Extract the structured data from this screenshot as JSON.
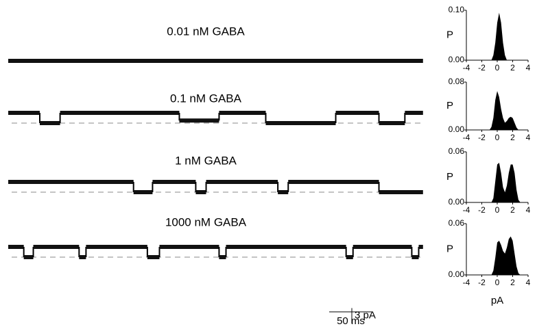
{
  "chart_data": [
    {
      "type": "trace",
      "title": "0.01 nM GABA",
      "xlim": [
        0,
        480
      ],
      "x": [
        0
      ],
      "values": [
        0
      ],
      "baseline_dashed": false
    },
    {
      "type": "trace",
      "title": "0.1 nM GABA",
      "xlim": [
        0,
        480
      ],
      "x": [
        0,
        36.5,
        60,
        198,
        244,
        298,
        379,
        429,
        459
      ],
      "values": [
        2,
        0,
        2,
        0.5,
        2,
        0,
        2,
        0,
        2
      ],
      "baseline_dashed": true
    },
    {
      "type": "trace",
      "title": "1 nM GABA",
      "xlim": [
        0,
        480
      ],
      "x": [
        0,
        145,
        167,
        217,
        229,
        312,
        324,
        429
      ],
      "values": [
        2,
        0,
        2,
        0,
        2,
        0,
        2,
        0
      ],
      "baseline_dashed": true
    },
    {
      "type": "trace",
      "title": "1000 nM GABA",
      "xlim": [
        0,
        480
      ],
      "x": [
        0,
        18,
        29,
        82,
        90,
        161,
        175,
        244,
        252,
        391,
        399,
        467,
        475
      ],
      "values": [
        2,
        0,
        2,
        0,
        2,
        0,
        2,
        0,
        2,
        0,
        2,
        0,
        2
      ],
      "baseline_dashed": true
    },
    {
      "type": "area",
      "ylabel": "P",
      "color": "#000000",
      "xlim": [
        -4,
        4
      ],
      "xticks": [
        -4,
        -2,
        0,
        2,
        4
      ],
      "ylim": [
        0,
        0.1
      ],
      "yticks": [
        {
          "value": 0,
          "label": "0.00"
        },
        {
          "value": 0.1,
          "label": "0.10"
        }
      ],
      "x": [
        -1,
        -0.75,
        -0.5,
        -0.25,
        0,
        0.25,
        0.5,
        0.75,
        1,
        1.25,
        1.5,
        1.75,
        2,
        2.25,
        2.5,
        2.75,
        3
      ],
      "values": [
        0,
        0,
        0.01,
        0.035,
        0.075,
        0.095,
        0.075,
        0.035,
        0.01,
        0,
        0,
        0,
        0,
        0,
        0,
        0,
        0
      ]
    },
    {
      "type": "area",
      "ylabel": "P",
      "color": "#000000",
      "xlim": [
        -4,
        4
      ],
      "xticks": [
        -4,
        -2,
        0,
        2,
        4
      ],
      "ylim": [
        0,
        0.08
      ],
      "yticks": [
        {
          "value": 0,
          "label": "0.00"
        },
        {
          "value": 0.08,
          "label": "0.08"
        }
      ],
      "x": [
        -1,
        -0.75,
        -0.5,
        -0.25,
        0,
        0.25,
        0.5,
        0.75,
        1,
        1.25,
        1.5,
        1.75,
        2,
        2.25,
        2.5,
        2.75,
        3
      ],
      "values": [
        0,
        0.005,
        0.02,
        0.05,
        0.065,
        0.055,
        0.035,
        0.02,
        0.012,
        0.015,
        0.02,
        0.022,
        0.02,
        0.012,
        0.004,
        0,
        0
      ]
    },
    {
      "type": "area",
      "ylabel": "P",
      "color": "#000000",
      "xlim": [
        -4,
        4
      ],
      "xticks": [
        -4,
        -2,
        0,
        2,
        4
      ],
      "ylim": [
        0,
        0.06
      ],
      "yticks": [
        {
          "value": 0,
          "label": "0.00"
        },
        {
          "value": 0.06,
          "label": "0.06"
        }
      ],
      "x": [
        -1,
        -0.75,
        -0.5,
        -0.25,
        0,
        0.25,
        0.5,
        0.75,
        1,
        1.25,
        1.5,
        1.75,
        2,
        2.25,
        2.5,
        2.75,
        3
      ],
      "values": [
        0,
        0,
        0.005,
        0.025,
        0.045,
        0.047,
        0.035,
        0.018,
        0.012,
        0.02,
        0.035,
        0.045,
        0.045,
        0.035,
        0.015,
        0.003,
        0
      ]
    },
    {
      "type": "area",
      "ylabel": "P",
      "xlabel": "pA",
      "color": "#000000",
      "xlim": [
        -4,
        4
      ],
      "xticks": [
        -4,
        -2,
        0,
        2,
        4
      ],
      "ylim": [
        0,
        0.06
      ],
      "yticks": [
        {
          "value": 0,
          "label": "0.00"
        },
        {
          "value": 0.06,
          "label": "0.06"
        }
      ],
      "x": [
        -1,
        -0.75,
        -0.5,
        -0.25,
        0,
        0.25,
        0.5,
        0.75,
        1,
        1.25,
        1.5,
        1.75,
        2,
        2.25,
        2.5,
        2.75,
        3
      ],
      "values": [
        0,
        0,
        0.005,
        0.02,
        0.038,
        0.04,
        0.035,
        0.028,
        0.025,
        0.032,
        0.042,
        0.045,
        0.04,
        0.025,
        0.01,
        0.002,
        0
      ]
    }
  ],
  "scale_bar": {
    "y": {
      "value": 3,
      "label": "3 pA"
    },
    "x": {
      "value": 50,
      "label": "50 ms"
    }
  }
}
